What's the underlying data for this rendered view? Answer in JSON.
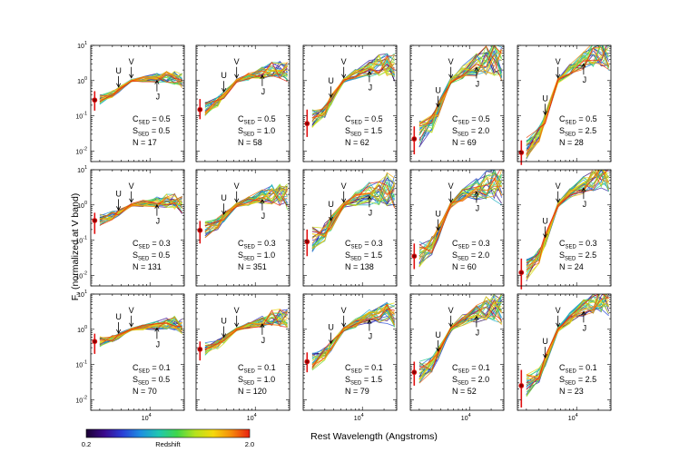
{
  "figure": {
    "ylabel": "Fν (normalized at V band)",
    "ylabel_main": "F",
    "ylabel_sub": "ν",
    "ylabel_rest": " (normalized at V band)",
    "xlabel": "Rest Wavelength (Angstroms)",
    "colorbar": {
      "label": "Redshift",
      "min_label": "0.2",
      "max_label": "2.0",
      "colors": [
        "#1a0033",
        "#3b0a8c",
        "#2a3fd6",
        "#1e8fe0",
        "#1fc7b0",
        "#3fd64a",
        "#b4e21e",
        "#f5d80c",
        "#f58a0c",
        "#e82010"
      ]
    }
  },
  "chart_data": {
    "type": "line",
    "title": "",
    "xlabel": "Rest Wavelength (Angstroms)",
    "ylabel": "Fν (normalized at V band)",
    "xscale": "log",
    "yscale": "log",
    "xlim": [
      1500,
      30000
    ],
    "ylim": [
      0.005,
      10
    ],
    "x_tick_labels": [
      {
        "base": "10",
        "exp": "4"
      }
    ],
    "y_tick_labels": [
      {
        "base": "10",
        "exp": "-2"
      },
      {
        "base": "10",
        "exp": "-1"
      },
      {
        "base": "10",
        "exp": "0"
      },
      {
        "base": "10",
        "exp": "1"
      }
    ],
    "band_markers": [
      "U",
      "V",
      "J"
    ],
    "band_wavelengths": {
      "U": 3650,
      "V": 5500,
      "J": 12500
    },
    "colorbar": {
      "label": "Redshift",
      "range": [
        0.2,
        2.0
      ]
    },
    "anchor_wavelengths": [
      2000,
      3000,
      3650,
      5500,
      8000,
      12500,
      17000,
      22000,
      28000
    ],
    "panels": [
      {
        "row": 0,
        "col": 0,
        "C_SED": "0.5",
        "S_SED": "0.5",
        "N": "17",
        "line1": "C",
        "sub1": "SED",
        "val1": " = 0.5",
        "line2": "S",
        "sub2": "SED",
        "val2": " = 0.5",
        "line3": "N = 17",
        "median_sed": [
          0.3,
          0.42,
          0.55,
          1.0,
          1.1,
          1.2,
          1.25,
          1.2,
          1.0
        ],
        "spread": 0.12,
        "uv_point": {
          "x": 1700,
          "y": 0.28,
          "err": [
            0.14,
            0.5
          ]
        }
      },
      {
        "row": 0,
        "col": 1,
        "C_SED": "0.5",
        "S_SED": "1.0",
        "N": "58",
        "line1": "C",
        "sub1": "SED",
        "val1": " = 0.5",
        "line2": "S",
        "sub2": "SED",
        "val2": " = 1.0",
        "line3": "N = 58",
        "median_sed": [
          0.16,
          0.25,
          0.4,
          1.0,
          1.3,
          1.7,
          2.0,
          2.1,
          1.8
        ],
        "spread": 0.16,
        "uv_point": {
          "x": 1700,
          "y": 0.15,
          "err": [
            0.08,
            0.3
          ]
        }
      },
      {
        "row": 0,
        "col": 2,
        "C_SED": "0.5",
        "S_SED": "1.5",
        "N": "62",
        "line1": "C",
        "sub1": "SED",
        "val1": " = 0.5",
        "line2": "S",
        "sub2": "SED",
        "val2": " = 1.5",
        "line3": "N = 62",
        "median_sed": [
          0.08,
          0.14,
          0.28,
          1.0,
          1.5,
          2.2,
          2.8,
          3.0,
          2.4
        ],
        "spread": 0.22,
        "uv_point": {
          "x": 1700,
          "y": 0.06,
          "err": [
            0.025,
            0.15
          ]
        }
      },
      {
        "row": 0,
        "col": 3,
        "C_SED": "0.5",
        "S_SED": "2.0",
        "N": "69",
        "line1": "C",
        "sub1": "SED",
        "val1": " = 0.5",
        "line2": "S",
        "sub2": "SED",
        "val2": " = 2.0",
        "line3": "N = 69",
        "median_sed": [
          0.03,
          0.06,
          0.15,
          1.0,
          1.8,
          2.8,
          3.8,
          4.2,
          3.4
        ],
        "spread": 0.3,
        "uv_point": {
          "x": 1700,
          "y": 0.022,
          "err": [
            0.008,
            0.05
          ]
        }
      },
      {
        "row": 0,
        "col": 4,
        "C_SED": "0.5",
        "S_SED": "2.5",
        "N": "28",
        "line1": "C",
        "sub1": "SED",
        "val1": " = 0.5",
        "line2": "S",
        "sub2": "SED",
        "val2": " = 2.5",
        "line3": "N = 28",
        "median_sed": [
          0.012,
          0.03,
          0.09,
          1.0,
          2.0,
          3.6,
          5.5,
          6.5,
          5.6
        ],
        "spread": 0.25,
        "uv_point": {
          "x": 1700,
          "y": 0.009,
          "err": [
            0.004,
            0.02
          ]
        }
      },
      {
        "row": 1,
        "col": 0,
        "C_SED": "0.3",
        "S_SED": "0.5",
        "N": "131",
        "line1": "C",
        "sub1": "SED",
        "val1": " = 0.3",
        "line2": "S",
        "sub2": "SED",
        "val2": " = 0.5",
        "line3": "N = 131",
        "median_sed": [
          0.38,
          0.5,
          0.6,
          1.0,
          1.1,
          1.2,
          1.3,
          1.25,
          1.0
        ],
        "spread": 0.14,
        "uv_point": {
          "x": 1700,
          "y": 0.36,
          "err": [
            0.15,
            0.6
          ]
        }
      },
      {
        "row": 1,
        "col": 1,
        "C_SED": "0.3",
        "S_SED": "1.0",
        "N": "351",
        "line1": "C",
        "sub1": "SED",
        "val1": " = 0.3",
        "line2": "S",
        "sub2": "SED",
        "val2": " = 1.0",
        "line3": "N = 351",
        "median_sed": [
          0.2,
          0.3,
          0.45,
          1.0,
          1.3,
          1.7,
          2.0,
          2.0,
          1.7
        ],
        "spread": 0.2,
        "uv_point": {
          "x": 1700,
          "y": 0.19,
          "err": [
            0.08,
            0.35
          ]
        }
      },
      {
        "row": 1,
        "col": 2,
        "C_SED": "0.3",
        "S_SED": "1.5",
        "N": "138",
        "line1": "C",
        "sub1": "SED",
        "val1": " = 0.3",
        "line2": "S",
        "sub2": "SED",
        "val2": " = 1.5",
        "line3": "N = 138",
        "median_sed": [
          0.1,
          0.17,
          0.3,
          1.0,
          1.5,
          2.1,
          2.6,
          2.8,
          2.3
        ],
        "spread": 0.3,
        "uv_point": {
          "x": 1700,
          "y": 0.09,
          "err": [
            0.035,
            0.2
          ]
        }
      },
      {
        "row": 1,
        "col": 3,
        "C_SED": "0.3",
        "S_SED": "2.0",
        "N": "60",
        "line1": "C",
        "sub1": "SED",
        "val1": " = 0.3",
        "line2": "S",
        "sub2": "SED",
        "val2": " = 2.0",
        "line3": "N = 60",
        "median_sed": [
          0.04,
          0.07,
          0.16,
          1.0,
          1.8,
          2.8,
          3.8,
          4.2,
          3.5
        ],
        "spread": 0.3,
        "uv_point": {
          "x": 1700,
          "y": 0.035,
          "err": [
            0.015,
            0.08
          ]
        }
      },
      {
        "row": 1,
        "col": 4,
        "C_SED": "0.3",
        "S_SED": "2.5",
        "N": "24",
        "line1": "C",
        "sub1": "SED",
        "val1": " = 0.3",
        "line2": "S",
        "sub2": "SED",
        "val2": " = 2.5",
        "line3": "N = 24",
        "median_sed": [
          0.014,
          0.035,
          0.1,
          1.0,
          2.0,
          3.6,
          5.5,
          6.8,
          5.8
        ],
        "spread": 0.25,
        "uv_point": {
          "x": 1700,
          "y": 0.012,
          "err": [
            0.004,
            0.03
          ]
        }
      },
      {
        "row": 2,
        "col": 0,
        "C_SED": "0.1",
        "S_SED": "0.5",
        "N": "70",
        "line1": "C",
        "sub1": "SED",
        "val1": " = 0.1",
        "line2": "S",
        "sub2": "SED",
        "val2": " = 0.5",
        "line3": "N = 70",
        "median_sed": [
          0.45,
          0.55,
          0.65,
          1.0,
          1.15,
          1.3,
          1.45,
          1.5,
          1.2
        ],
        "spread": 0.12,
        "uv_point": {
          "x": 1700,
          "y": 0.45,
          "err": [
            0.2,
            0.75
          ]
        }
      },
      {
        "row": 2,
        "col": 1,
        "C_SED": "0.1",
        "S_SED": "1.0",
        "N": "120",
        "line1": "C",
        "sub1": "SED",
        "val1": " = 0.1",
        "line2": "S",
        "sub2": "SED",
        "val2": " = 1.0",
        "line3": "N = 120",
        "median_sed": [
          0.27,
          0.37,
          0.5,
          1.0,
          1.3,
          1.7,
          2.1,
          2.2,
          1.9
        ],
        "spread": 0.16,
        "uv_point": {
          "x": 1700,
          "y": 0.27,
          "err": [
            0.13,
            0.45
          ]
        }
      },
      {
        "row": 2,
        "col": 2,
        "C_SED": "0.1",
        "S_SED": "1.5",
        "N": "79",
        "line1": "C",
        "sub1": "SED",
        "val1": " = 0.1",
        "line2": "S",
        "sub2": "SED",
        "val2": " = 1.5",
        "line3": "N = 79",
        "median_sed": [
          0.12,
          0.2,
          0.33,
          1.0,
          1.5,
          2.2,
          2.8,
          3.0,
          2.5
        ],
        "spread": 0.2,
        "uv_point": {
          "x": 1700,
          "y": 0.12,
          "err": [
            0.06,
            0.22
          ]
        }
      },
      {
        "row": 2,
        "col": 3,
        "C_SED": "0.1",
        "S_SED": "2.0",
        "N": "52",
        "line1": "C",
        "sub1": "SED",
        "val1": " = 0.1",
        "line2": "S",
        "sub2": "SED",
        "val2": " = 2.0",
        "line3": "N = 52",
        "median_sed": [
          0.06,
          0.1,
          0.2,
          1.0,
          1.8,
          2.8,
          3.8,
          4.5,
          3.8
        ],
        "spread": 0.25,
        "uv_point": {
          "x": 1700,
          "y": 0.06,
          "err": [
            0.025,
            0.12
          ]
        }
      },
      {
        "row": 2,
        "col": 4,
        "C_SED": "0.1",
        "S_SED": "2.5",
        "N": "23",
        "line1": "C",
        "sub1": "SED",
        "val1": " = 0.1",
        "line2": "S",
        "sub2": "SED",
        "val2": " = 2.5",
        "line3": "N = 23",
        "median_sed": [
          0.025,
          0.05,
          0.13,
          1.0,
          2.1,
          3.8,
          5.8,
          7.5,
          6.8
        ],
        "spread": 0.25,
        "uv_point": {
          "x": 1700,
          "y": 0.025,
          "err": [
            0.006,
            0.07
          ]
        }
      }
    ]
  }
}
